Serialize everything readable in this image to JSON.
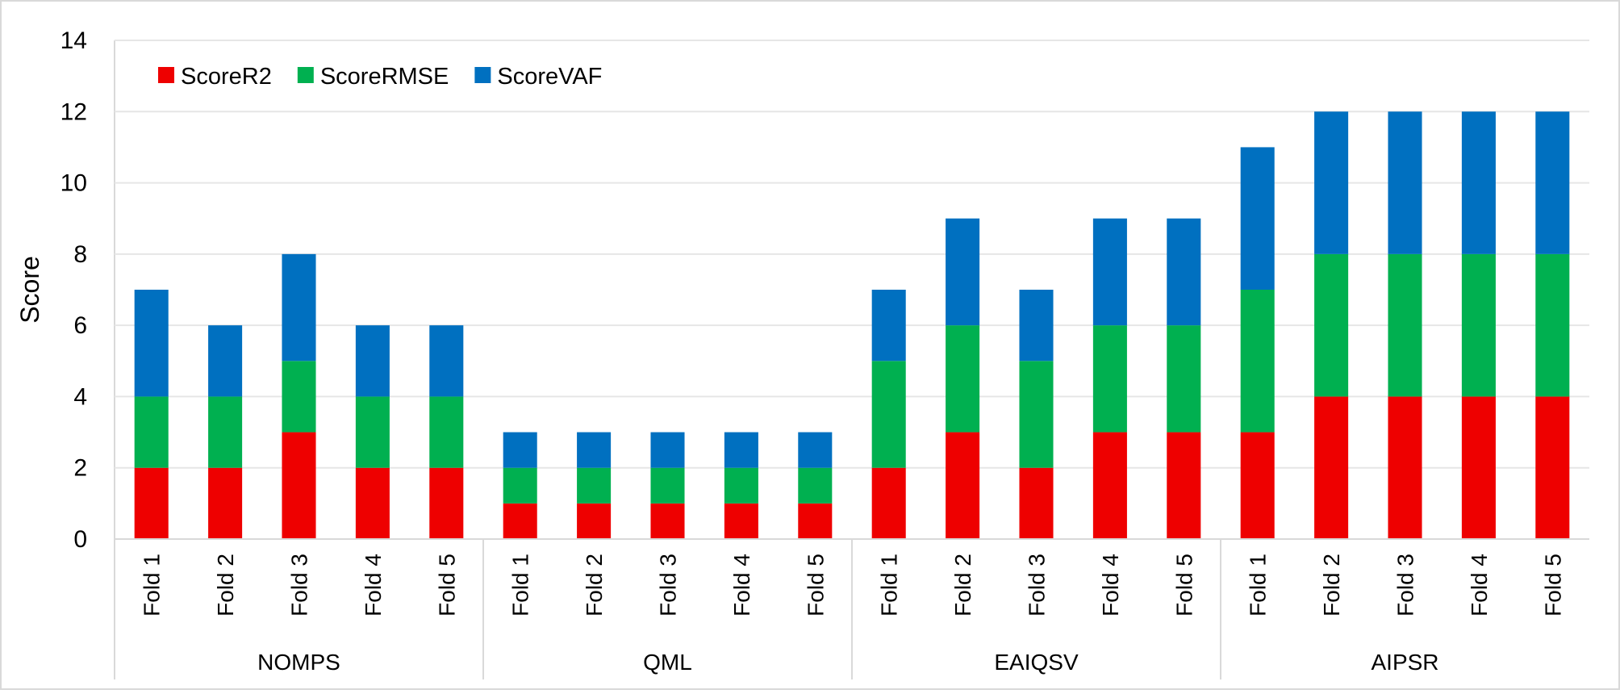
{
  "chart_data": {
    "type": "bar",
    "stacked": true,
    "title": "",
    "xlabel": "",
    "ylabel": "Score",
    "ylim": [
      0,
      14
    ],
    "y_ticks": [
      0,
      2,
      4,
      6,
      8,
      10,
      12,
      14
    ],
    "grid": true,
    "legend_position": "top-left",
    "groups": [
      {
        "name": "NOMPS",
        "categories": [
          "Fold 1",
          "Fold 2",
          "Fold 3",
          "Fold 4",
          "Fold 5"
        ]
      },
      {
        "name": "QML",
        "categories": [
          "Fold 1",
          "Fold 2",
          "Fold 3",
          "Fold 4",
          "Fold 5"
        ]
      },
      {
        "name": "EAIQSV",
        "categories": [
          "Fold 1",
          "Fold 2",
          "Fold 3",
          "Fold 4",
          "Fold 5"
        ]
      },
      {
        "name": "AIPSR",
        "categories": [
          "Fold 1",
          "Fold 2",
          "Fold 3",
          "Fold 4",
          "Fold 5"
        ]
      }
    ],
    "series": [
      {
        "name": "ScoreR2",
        "color": "#ee0000",
        "values": [
          2,
          2,
          3,
          2,
          2,
          1,
          1,
          1,
          1,
          1,
          2,
          3,
          2,
          3,
          3,
          3,
          4,
          4,
          4,
          4
        ]
      },
      {
        "name": "ScoreRMSE",
        "color": "#00b050",
        "values": [
          2,
          2,
          2,
          2,
          2,
          1,
          1,
          1,
          1,
          1,
          3,
          3,
          3,
          3,
          3,
          4,
          4,
          4,
          4,
          4
        ]
      },
      {
        "name": "ScoreVAF",
        "color": "#0070c0",
        "values": [
          3,
          2,
          3,
          2,
          2,
          1,
          1,
          1,
          1,
          1,
          2,
          3,
          2,
          3,
          3,
          4,
          4,
          4,
          4,
          4
        ]
      }
    ]
  }
}
